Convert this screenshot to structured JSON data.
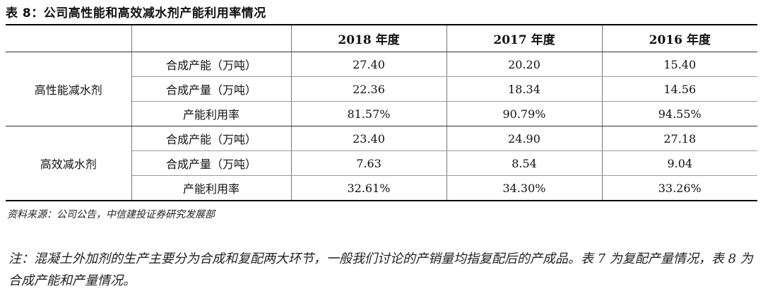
{
  "title": "表 8：公司高性能和高效减水剂产能利用率情况",
  "header": [
    "",
    "",
    "2018 年度",
    "2017 年度",
    "2016 年度"
  ],
  "groups": [
    {
      "name": "高性能减水剂",
      "rows": [
        {
          "metric": "合成产能（万吨）",
          "values": [
            "27.40",
            "20.20",
            "15.40"
          ]
        },
        {
          "metric": "合成产量（万吨）",
          "values": [
            "22.36",
            "18.34",
            "14.56"
          ]
        },
        {
          "metric": "产能利用率",
          "values": [
            "81.57%",
            "90.79%",
            "94.55%"
          ]
        }
      ]
    },
    {
      "name": "高效减水剂",
      "rows": [
        {
          "metric": "合成产能（万吨）",
          "values": [
            "23.40",
            "24.90",
            "27.18"
          ]
        },
        {
          "metric": "合成产量（万吨）",
          "values": [
            "7.63",
            "8.54",
            "9.04"
          ]
        },
        {
          "metric": "产能利用率",
          "values": [
            "32.61%",
            "34.30%",
            "33.26%"
          ]
        }
      ]
    }
  ],
  "source": "资料来源：公司公告，中信建投证券研究发展部",
  "note": "注：混凝土外加剂的生产主要分为合成和复配两大环节，一般我们讨论的产销量均指复配后的产成品。表 7 为复配产量情况，表 8 为合成产能和产量情况。"
}
